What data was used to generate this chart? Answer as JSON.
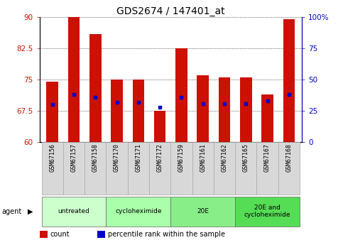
{
  "title": "GDS2674 / 147401_at",
  "samples": [
    "GSM67156",
    "GSM67157",
    "GSM67158",
    "GSM67170",
    "GSM67171",
    "GSM67172",
    "GSM67159",
    "GSM67161",
    "GSM67162",
    "GSM67165",
    "GSM67167",
    "GSM67168"
  ],
  "counts": [
    74.5,
    90.0,
    86.0,
    75.0,
    75.0,
    67.5,
    82.5,
    76.0,
    75.5,
    75.5,
    71.5,
    89.5
  ],
  "percentile_ranks": [
    30,
    38,
    36,
    32,
    32,
    28,
    36,
    31,
    31,
    31,
    33,
    38
  ],
  "ylim_left": [
    60,
    90
  ],
  "ylim_right": [
    0,
    100
  ],
  "yticks_left": [
    60,
    67.5,
    75,
    82.5,
    90
  ],
  "yticks_right": [
    0,
    25,
    50,
    75,
    100
  ],
  "ytick_labels_right": [
    "0",
    "25",
    "50",
    "75",
    "100%"
  ],
  "bar_color": "#cc1100",
  "dot_color": "#0000cc",
  "background_color": "#ffffff",
  "bar_width": 0.55,
  "title_fontsize": 10,
  "tick_fontsize": 7.5,
  "group_spans": [
    [
      0,
      3,
      "untreated",
      "#ccffcc"
    ],
    [
      3,
      6,
      "cycloheximide",
      "#aaffaa"
    ],
    [
      6,
      9,
      "20E",
      "#88ee88"
    ],
    [
      9,
      12,
      "20E and\ncycloheximide",
      "#55dd55"
    ]
  ],
  "legend_count_color": "#cc1100",
  "legend_dot_color": "#0000cc"
}
